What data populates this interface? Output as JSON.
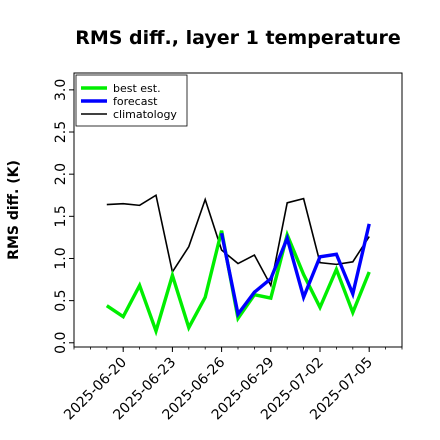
{
  "chart_data": {
    "type": "line",
    "title": "RMS diff., layer 1 temperature",
    "ylabel": "RMS diff. (K)",
    "xlabel": "",
    "ylim": [
      -0.05,
      3.2
    ],
    "xlim": [
      "2025-06-17",
      "2025-07-07"
    ],
    "yticks": [
      "0.0",
      "0.5",
      "1.0",
      "1.5",
      "2.0",
      "2.5",
      "3.0"
    ],
    "xticks": [
      "2025-06-20",
      "2025-06-23",
      "2025-06-26",
      "2025-06-29",
      "2025-07-02",
      "2025-07-05"
    ],
    "highlight_tick": "2025-06-26",
    "highlight_color": "#228B22",
    "grid": false,
    "legend_position": "top-left",
    "series": [
      {
        "name": "best est.",
        "color": "#00ee00",
        "x": [
          "2025-06-19",
          "2025-06-20",
          "2025-06-21",
          "2025-06-22",
          "2025-06-23",
          "2025-06-24",
          "2025-06-25",
          "2025-06-26",
          "2025-06-27",
          "2025-06-28",
          "2025-06-29",
          "2025-06-30",
          "2025-07-01",
          "2025-07-02",
          "2025-07-03",
          "2025-07-04",
          "2025-07-05"
        ],
        "y": [
          0.44,
          0.31,
          0.68,
          0.14,
          0.8,
          0.18,
          0.54,
          1.33,
          0.29,
          0.57,
          0.53,
          1.28,
          0.81,
          0.42,
          0.87,
          0.36,
          0.84
        ]
      },
      {
        "name": "forecast",
        "color": "#0000ff",
        "x": [
          "2025-06-26",
          "2025-06-27",
          "2025-06-28",
          "2025-06-29",
          "2025-06-30",
          "2025-07-01",
          "2025-07-02",
          "2025-07-03",
          "2025-07-04",
          "2025-07-05"
        ],
        "y": [
          1.3,
          0.34,
          0.6,
          0.76,
          1.24,
          0.54,
          1.02,
          1.05,
          0.58,
          1.41
        ]
      },
      {
        "name": "climatology",
        "color": "#000000",
        "x": [
          "2025-06-19",
          "2025-06-20",
          "2025-06-21",
          "2025-06-22",
          "2025-06-23",
          "2025-06-24",
          "2025-06-25",
          "2025-06-26",
          "2025-06-27",
          "2025-06-28",
          "2025-06-29",
          "2025-06-30",
          "2025-07-01",
          "2025-07-02",
          "2025-07-03",
          "2025-07-04",
          "2025-07-05"
        ],
        "y": [
          1.64,
          1.65,
          1.63,
          1.75,
          0.84,
          1.14,
          1.7,
          1.1,
          0.94,
          1.04,
          0.68,
          1.66,
          1.71,
          0.95,
          0.93,
          0.96,
          1.26
        ]
      }
    ]
  }
}
